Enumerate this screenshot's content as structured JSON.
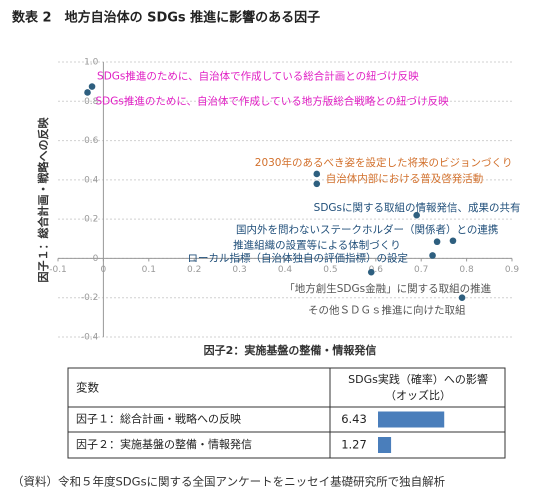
{
  "title": "数表 2　地方自治体の SDGs 推進に影響のある因子",
  "chart_data": {
    "type": "scatter",
    "xlabel": "因子2：実施基盤の整備・情報発信",
    "ylabel": "因子１：総合計画・戦略への反映",
    "xlim": [
      -0.1,
      0.9
    ],
    "ylim": [
      -0.4,
      1.0
    ],
    "xticks": [
      -0.1,
      0,
      0.1,
      0.2,
      0.3,
      0.4,
      0.5,
      0.6,
      0.7,
      0.8,
      0.9
    ],
    "yticks": [
      {
        "value": 1.0,
        "label": "1.0"
      },
      0.8,
      0.6,
      0.4,
      0.2,
      0,
      -0.2,
      -0.4
    ],
    "grid": true,
    "color": "#2e5f7f",
    "x": [
      -0.025,
      -0.035,
      0.47,
      0.47,
      0.69,
      0.77,
      0.735,
      0.725,
      0.59,
      0.79
    ],
    "values": [
      0.875,
      0.845,
      0.43,
      0.38,
      0.22,
      0.09,
      0.085,
      0.015,
      -0.07,
      -0.2
    ],
    "labels": [
      "SDGs推進のために、自治体で作成している総合計画との紐づけ反映",
      "SDGs推進のために、自治体で作成している地方版総合戦略との紐づけ反映",
      "2030年のあるべき姿を設定した将来のビジョンづくり",
      "自治体内部における普及啓発活動",
      "SDGsに関する取組の情報発信、成果の共有",
      "国内外を問わないステークホルダー（関係者）との連携",
      "推進組織の設置等による体制づくり",
      "ローカル指標（自治体独自の評価指標）の設定",
      "「地方創生SDGs金融」に関する取組の推進",
      "その他ＳＤＧｓ推進に向けた取組"
    ],
    "label_colors": [
      "#e01fc4",
      "#e01fc4",
      "#d2702c",
      "#d2702c",
      "#1f4e79",
      "#1f4e79",
      "#1f4e79",
      "#1f4e79",
      "#555555",
      "#555555"
    ]
  },
  "table": {
    "header": {
      "variable": "変数",
      "effect": [
        "SDGs実践（確率）への影響",
        "（オッズ比）"
      ]
    },
    "rows": [
      [
        "因子１：総合計画・戦略への反映",
        6.43
      ],
      [
        "因子２：実施基盤の整備・情報発信",
        1.27
      ]
    ],
    "bar_color": "#4a7ebb"
  },
  "source": "（資料）令和５年度SDGsに関する全国アンケートをニッセイ基礎研究所で独自解析"
}
